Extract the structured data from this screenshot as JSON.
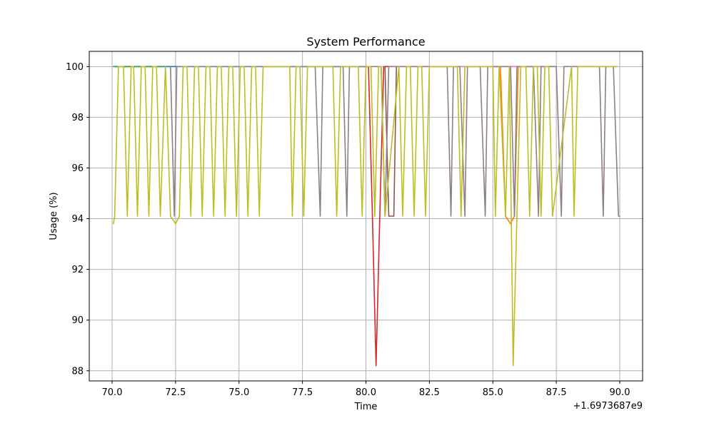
{
  "chart_data": {
    "type": "line",
    "title": "System Performance",
    "xlabel": "Time",
    "ylabel": "Usage (%)",
    "x_offset_label": "+1.6973687e9",
    "xlim": [
      69.1,
      90.9
    ],
    "ylim": [
      87.6,
      100.6
    ],
    "x_ticks": [
      70.0,
      72.5,
      75.0,
      77.5,
      80.0,
      82.5,
      85.0,
      87.5,
      90.0
    ],
    "x_tick_labels": [
      "70.0",
      "72.5",
      "75.0",
      "77.5",
      "80.0",
      "82.5",
      "85.0",
      "87.5",
      "90.0"
    ],
    "y_ticks": [
      88,
      90,
      92,
      94,
      96,
      98,
      100
    ],
    "y_tick_labels": [
      "88",
      "90",
      "92",
      "94",
      "96",
      "98",
      "100"
    ],
    "grid": true,
    "series": [
      {
        "color": "#1f77b4",
        "x": [
          70.05,
          71.0,
          72.0,
          73.0,
          74.0,
          75.0,
          76.0,
          77.0,
          78.0,
          79.0,
          80.1
        ],
        "values": [
          100,
          100,
          100,
          100,
          100,
          100,
          100,
          100,
          100,
          100,
          100
        ]
      },
      {
        "color": "#2ca02c",
        "x": [
          70.05,
          70.5,
          71.5,
          72.0
        ],
        "values": [
          100,
          100,
          100,
          100
        ]
      },
      {
        "color": "#ff7f0e",
        "x": [
          85.0,
          85.3,
          85.5,
          85.7,
          85.85,
          86.0,
          86.2,
          86.5
        ],
        "values": [
          100,
          100,
          94.1,
          93.8,
          94.1,
          100,
          100,
          100
        ]
      },
      {
        "color": "#d62728",
        "x": [
          79.9,
          80.1,
          80.25,
          80.4,
          80.55,
          80.7,
          80.9
        ],
        "values": [
          100,
          100,
          94.3,
          88.2,
          94.3,
          100,
          100
        ]
      },
      {
        "color": "#e377c2",
        "x": [
          81.3,
          81.6,
          82.0,
          86.8,
          87.0,
          87.3
        ],
        "values": [
          100,
          100,
          100,
          100,
          100,
          100
        ]
      },
      {
        "color": "#8c564b",
        "x": [
          80.75,
          80.8,
          80.9,
          81.0,
          81.1,
          81.2
        ],
        "values": [
          100,
          98.0,
          94.1,
          94.1,
          94.1,
          100
        ]
      },
      {
        "color": "#8c7f85",
        "x": [
          72.3,
          72.45,
          72.55,
          72.7,
          78.0,
          78.2,
          78.3,
          78.5,
          79.1,
          79.25,
          79.35,
          79.5,
          80.6,
          80.75,
          80.9,
          81.05,
          83.2,
          83.35,
          83.45,
          83.6,
          83.7,
          83.9,
          84.0,
          84.1,
          84.5,
          84.7,
          84.8,
          84.9,
          85.7,
          85.85,
          85.95,
          86.1,
          86.6,
          86.8,
          86.9,
          87.05,
          87.5,
          87.7,
          87.8,
          87.95,
          89.2,
          89.35,
          89.45,
          89.6,
          89.75,
          89.95,
          90.0
        ],
        "values": [
          100,
          94.1,
          100,
          100,
          100,
          94.1,
          100,
          100,
          100,
          94.1,
          100,
          100,
          100,
          94.1,
          100,
          100,
          100,
          94.1,
          100,
          100,
          100,
          94.1,
          100,
          100,
          100,
          94.1,
          100,
          100,
          100,
          94.1,
          100,
          100,
          100,
          94.1,
          100,
          100,
          100,
          94.1,
          100,
          100,
          100,
          94.1,
          100,
          100,
          100,
          94.1,
          94.1
        ]
      },
      {
        "color": "#bcbd22",
        "x": [
          70.05,
          70.1,
          70.25,
          70.45,
          70.6,
          70.75,
          70.85,
          71.0,
          71.15,
          71.3,
          71.45,
          71.6,
          71.75,
          71.9,
          72.1,
          72.3,
          72.5,
          72.65,
          72.8,
          72.95,
          73.1,
          73.25,
          73.4,
          73.55,
          73.7,
          73.85,
          74.0,
          74.15,
          74.3,
          74.45,
          74.6,
          74.75,
          74.9,
          75.05,
          75.2,
          75.35,
          75.5,
          75.65,
          75.8,
          75.95,
          76.1,
          76.25,
          77.0,
          77.1,
          77.25,
          77.4,
          77.55,
          77.7,
          77.85,
          78.0,
          78.7,
          78.85,
          79.0,
          79.15,
          79.7,
          79.85,
          80.0,
          80.2,
          80.35,
          80.5,
          80.6,
          80.75,
          81.3,
          81.45,
          81.6,
          81.75,
          81.9,
          82.05,
          82.2,
          82.35,
          82.5,
          83.6,
          83.75,
          83.9,
          84.0,
          85.0,
          85.1,
          85.25,
          85.5,
          85.65,
          85.8,
          85.95,
          86.1,
          86.3,
          86.45,
          86.6,
          86.75,
          86.9,
          87.05,
          87.2,
          87.35,
          88.1,
          88.2,
          88.35,
          89.0,
          89.9
        ],
        "values": [
          93.8,
          94.1,
          100,
          100,
          94.1,
          100,
          100,
          94.1,
          100,
          100,
          94.1,
          100,
          100,
          94.1,
          100,
          94.1,
          93.8,
          94.1,
          100,
          100,
          94.1,
          100,
          100,
          94.1,
          100,
          100,
          94.1,
          100,
          100,
          94.1,
          100,
          100,
          94.1,
          100,
          100,
          94.1,
          100,
          100,
          94.1,
          100,
          100,
          100,
          100,
          94.1,
          100,
          100,
          94.1,
          100,
          100,
          100,
          100,
          94.1,
          100,
          100,
          100,
          94.1,
          100,
          100,
          94.1,
          100,
          100,
          94.1,
          100,
          94.1,
          100,
          100,
          94.1,
          100,
          100,
          94.1,
          100,
          100,
          94.1,
          100,
          100,
          100,
          94.1,
          100,
          94.1,
          100,
          88.2,
          94.1,
          100,
          100,
          94.1,
          100,
          100,
          94.1,
          100,
          100,
          94.1,
          100,
          94.1,
          100,
          100,
          100
        ]
      }
    ]
  }
}
